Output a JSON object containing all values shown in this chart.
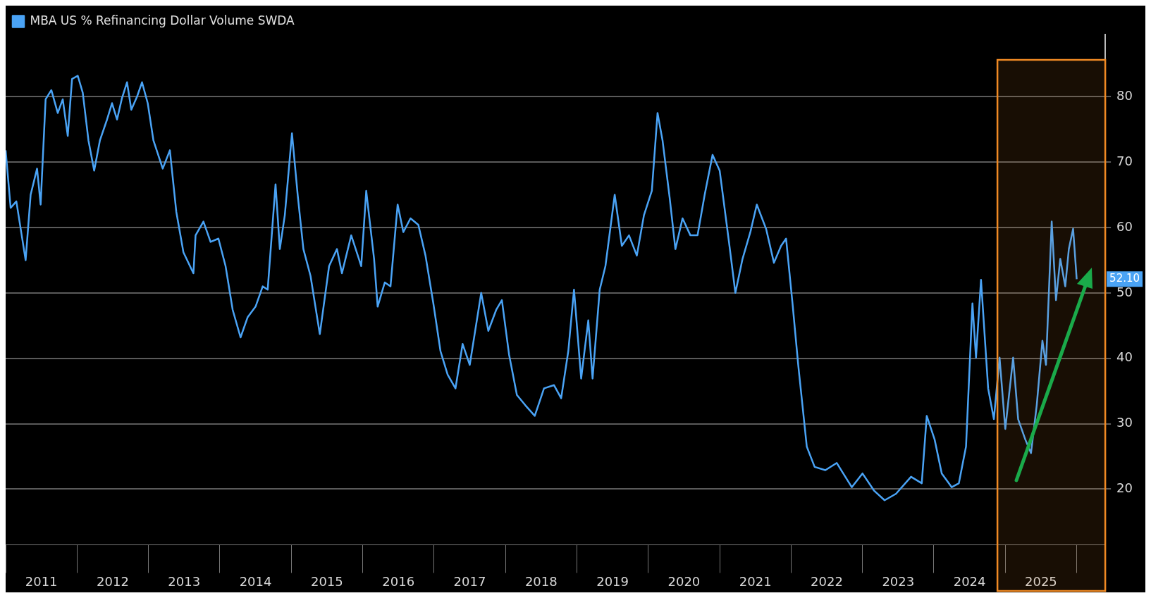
{
  "chart_data": {
    "type": "line",
    "legend": "top left",
    "grid": "y",
    "marker": "none",
    "line_style": "solid",
    "x": [
      2011.0,
      2011.07,
      2011.15,
      2011.28,
      2011.35,
      2011.44,
      2011.49,
      2011.56,
      2011.64,
      2011.73,
      2011.8,
      2011.87,
      2011.93,
      2012.01,
      2012.08,
      2012.16,
      2012.24,
      2012.32,
      2012.42,
      2012.49,
      2012.56,
      2012.63,
      2012.7,
      2012.76,
      2012.84,
      2012.91,
      2012.99,
      2013.07,
      2013.2,
      2013.3,
      2013.39,
      2013.49,
      2013.63,
      2013.66,
      2013.77,
      2013.87,
      2013.98,
      2014.08,
      2014.18,
      2014.29,
      2014.39,
      2014.5,
      2014.6,
      2014.67,
      2014.78,
      2014.84,
      2014.91,
      2015.01,
      2015.09,
      2015.17,
      2015.27,
      2015.4,
      2015.53,
      2015.64,
      2015.71,
      2015.84,
      2015.98,
      2016.05,
      2016.16,
      2016.21,
      2016.31,
      2016.39,
      2016.49,
      2016.57,
      2016.67,
      2016.78,
      2016.88,
      2016.99,
      2017.09,
      2017.19,
      2017.3,
      2017.4,
      2017.5,
      2017.66,
      2017.76,
      2017.87,
      2017.95,
      2018.05,
      2018.16,
      2018.28,
      2018.41,
      2018.54,
      2018.68,
      2018.78,
      2018.88,
      2018.96,
      2019.06,
      2019.16,
      2019.22,
      2019.32,
      2019.4,
      2019.53,
      2019.63,
      2019.73,
      2019.84,
      2019.94,
      2020.05,
      2020.13,
      2020.2,
      2020.3,
      2020.38,
      2020.48,
      2020.59,
      2020.69,
      2020.79,
      2020.9,
      2021.0,
      2021.13,
      2021.22,
      2021.32,
      2021.43,
      2021.52,
      2021.65,
      2021.76,
      2021.86,
      2021.93,
      2022.02,
      2022.1,
      2022.22,
      2022.33,
      2022.48,
      2022.64,
      2022.85,
      2023.0,
      2023.16,
      2023.31,
      2023.47,
      2023.68,
      2023.83,
      2023.9,
      2024.01,
      2024.11,
      2024.25,
      2024.35,
      2024.45,
      2024.54,
      2024.59,
      2024.66,
      2024.76,
      2024.84,
      2024.92,
      2025.0,
      2025.11,
      2025.18,
      2025.28,
      2025.36,
      2025.44,
      2025.52,
      2025.57,
      2025.65,
      2025.71,
      2025.77,
      2025.84,
      2025.89,
      2025.95,
      2026.0
    ],
    "series": [
      {
        "name": "MBA US % Refinancing Dollar Volume SWDA",
        "color": "#4aa3f5",
        "values": [
          71.8,
          63,
          64,
          55,
          65,
          69,
          63.5,
          79.6,
          81,
          77.5,
          79.6,
          74,
          82.7,
          83.2,
          80.6,
          73.3,
          68.7,
          73.3,
          76.5,
          79,
          76.5,
          79.8,
          82.2,
          78,
          80,
          82.2,
          79,
          73.3,
          69,
          71.8,
          62.4,
          56.2,
          53,
          58.8,
          60.9,
          57.8,
          58.3,
          54.1,
          47.4,
          43.2,
          46.3,
          47.9,
          51,
          50.5,
          66.6,
          56.7,
          61.9,
          74.4,
          65,
          56.7,
          52.6,
          43.7,
          54.1,
          56.7,
          53,
          58.8,
          54.1,
          65.6,
          55.2,
          47.9,
          51.6,
          51,
          63.5,
          59.3,
          61.4,
          60.4,
          55.7,
          48.4,
          41.1,
          37.5,
          35.4,
          42.2,
          39,
          50,
          44.2,
          47.4,
          48.9,
          40.6,
          34.4,
          32.8,
          31.2,
          35.4,
          35.9,
          33.9,
          41.1,
          50.5,
          36.9,
          45.8,
          36.9,
          50.5,
          54.1,
          65,
          57.2,
          58.8,
          55.7,
          61.9,
          65.6,
          77.5,
          73.3,
          64.5,
          56.7,
          61.4,
          58.8,
          58.8,
          65,
          71.1,
          68.7,
          57.8,
          50,
          55.2,
          59.3,
          63.5,
          59.8,
          54.6,
          57.2,
          58.3,
          48.4,
          39,
          26.5,
          23.4,
          22.9,
          24,
          20.3,
          22.4,
          19.8,
          18.3,
          19.3,
          21.9,
          20.9,
          31.2,
          27.6,
          22.4,
          20.3,
          20.9,
          26.5,
          48.4,
          40.1,
          52,
          35.4,
          30.7,
          40.1,
          29.2,
          40.1,
          30.7,
          27.6,
          25.5,
          32.8,
          42.7,
          39,
          60.9,
          48.9,
          55.2,
          51,
          56.7,
          59.8,
          52.1
        ]
      }
    ],
    "xlim": [
      2011,
      2026.4
    ],
    "xticks": [
      {
        "value": 2011.5,
        "label": "2011"
      },
      {
        "value": 2012.5,
        "label": "2012"
      },
      {
        "value": 2013.5,
        "label": "2013"
      },
      {
        "value": 2014.5,
        "label": "2014"
      },
      {
        "value": 2015.5,
        "label": "2015"
      },
      {
        "value": 2016.5,
        "label": "2016"
      },
      {
        "value": 2017.5,
        "label": "2017"
      },
      {
        "value": 2018.5,
        "label": "2018"
      },
      {
        "value": 2019.5,
        "label": "2019"
      },
      {
        "value": 2020.5,
        "label": "2020"
      },
      {
        "value": 2021.5,
        "label": "2021"
      },
      {
        "value": 2022.5,
        "label": "2022"
      },
      {
        "value": 2023.5,
        "label": "2023"
      },
      {
        "value": 2024.5,
        "label": "2024"
      },
      {
        "value": 2025.5,
        "label": "2025"
      }
    ],
    "bands": [
      {
        "axis": "x",
        "from": 2024.89,
        "to": 2026.4,
        "color": "#f08a24"
      }
    ],
    "ylim": [
      11.5,
      89.5
    ],
    "yticks": [
      20,
      30,
      40,
      50,
      60,
      70,
      80
    ],
    "annotations": [
      "52.10"
    ]
  }
}
